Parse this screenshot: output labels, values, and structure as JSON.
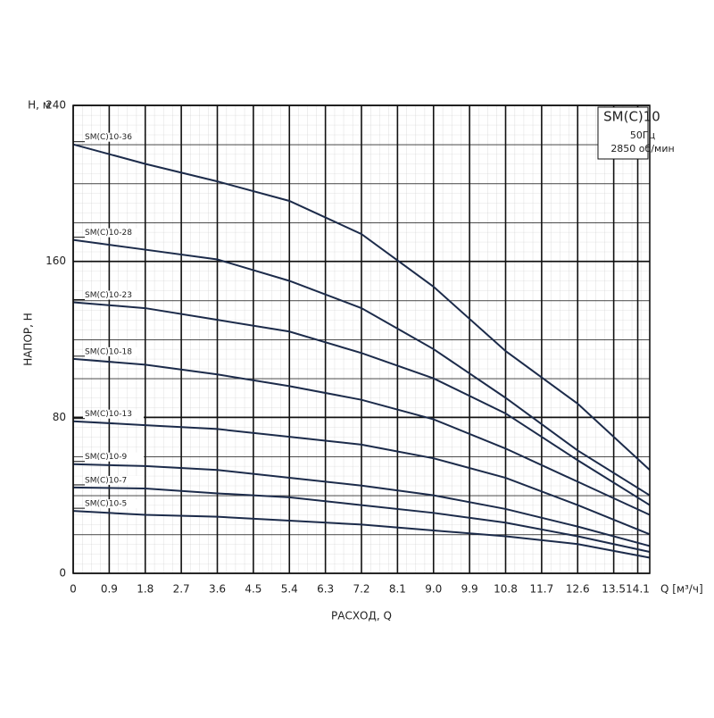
{
  "chart_data": {
    "type": "line",
    "y_unit_label": "Н, м",
    "ylabel": "НАПОР, Н",
    "xlabel": "РАСХОД, Q",
    "x_unit_label": "Q [м³/ч]",
    "legend_box": {
      "title": "SM(C)10",
      "lines": [
        "50Гц",
        "2850 об/мин"
      ]
    },
    "x": [
      0,
      1.8,
      3.6,
      5.4,
      7.2,
      9.0,
      10.8,
      12.6,
      14.4
    ],
    "xlim": [
      0,
      14.4
    ],
    "xticks": [
      0,
      0.9,
      1.8,
      2.7,
      3.6,
      4.5,
      5.4,
      6.3,
      7.2,
      8.1,
      {
        "value": 9,
        "label": "9.0"
      },
      9.9,
      10.8,
      11.7,
      12.6,
      13.5,
      14.1
    ],
    "ylim": [
      0,
      240
    ],
    "yticks": [
      0,
      80,
      160,
      240
    ],
    "grid": true,
    "series": [
      {
        "name": "SM(C)10-36",
        "color": "#1c2b4a",
        "values": [
          220,
          210,
          201,
          191,
          174,
          147,
          114,
          87,
          53
        ]
      },
      {
        "name": "SM(C)10-28",
        "color": "#1c2b4a",
        "values": [
          171,
          166,
          161,
          150,
          136,
          115,
          90,
          63,
          40
        ]
      },
      {
        "name": "SM(C)10-23",
        "color": "#1c2b4a",
        "values": [
          139,
          136,
          130,
          124,
          113,
          100,
          82,
          58,
          35
        ]
      },
      {
        "name": "SM(C)10-18",
        "color": "#1c2b4a",
        "values": [
          110,
          107,
          102,
          96,
          89,
          79,
          64,
          47,
          30
        ]
      },
      {
        "name": "SM(C)10-13",
        "color": "#1c2b4a",
        "values": [
          78,
          76,
          74,
          70,
          66,
          59,
          49,
          35,
          20
        ]
      },
      {
        "name": "SM(C)10-9",
        "color": "#1c2b4a",
        "values": [
          56,
          55,
          53,
          49,
          45,
          40,
          33,
          24,
          14
        ]
      },
      {
        "name": "SM(C)10-7",
        "color": "#1c2b4a",
        "values": [
          44,
          43.5,
          41,
          39,
          35,
          31,
          26,
          19,
          11
        ]
      },
      {
        "name": "SM(C)10-5",
        "color": "#1c2b4a",
        "values": [
          32,
          30,
          29,
          27,
          25,
          22,
          19,
          15,
          8
        ]
      }
    ]
  }
}
